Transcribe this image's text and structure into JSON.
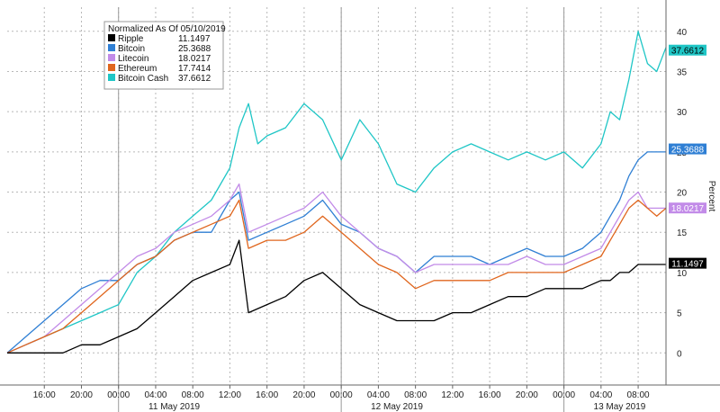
{
  "chart_data": {
    "type": "line",
    "ylabel": "Percent",
    "ylim": [
      -4,
      43
    ],
    "y_ticks": [
      "0",
      "5",
      "10",
      "15",
      "20",
      "25",
      "30",
      "35",
      "40"
    ],
    "y_tick_values": [
      0,
      5,
      10,
      15,
      20,
      25,
      30,
      35,
      40
    ],
    "x_hours_range": [
      0,
      71
    ],
    "x_tick_labels": [
      "16:00",
      "20:00",
      "00:00",
      "04:00",
      "08:00",
      "12:00",
      "16:00",
      "20:00",
      "00:00",
      "04:00",
      "08:00",
      "12:00",
      "16:00",
      "20:00",
      "00:00",
      "04:00",
      "08:00",
      "12:00"
    ],
    "x_tick_hours": [
      4,
      8,
      12,
      16,
      20,
      24,
      28,
      32,
      36,
      40,
      44,
      48,
      52,
      56,
      60,
      64,
      68,
      72
    ],
    "date_labels": [
      "11 May 2019",
      "12 May 2019",
      "13 May 2019"
    ],
    "date_label_hours": [
      18,
      42,
      66
    ],
    "day_boundary_hours": [
      12,
      36,
      60
    ],
    "grid": true,
    "legend": {
      "title": "Normalized As Of 05/10/2019",
      "position": "top-left"
    },
    "series": [
      {
        "name": "Bitcoin Cash",
        "last": "37.6612",
        "color": "#1fc6c6",
        "x": [
          0,
          2,
          4,
          6,
          8,
          10,
          12,
          14,
          16,
          18,
          20,
          22,
          24,
          25,
          26,
          27,
          28,
          30,
          32,
          34,
          36,
          38,
          40,
          42,
          44,
          46,
          48,
          50,
          52,
          54,
          56,
          58,
          60,
          62,
          64,
          65,
          66,
          67,
          68,
          69,
          70,
          71
        ],
        "y": [
          0,
          1,
          2,
          3,
          4,
          5,
          6,
          10,
          12,
          15,
          17,
          19,
          23,
          28,
          31,
          26,
          27,
          28,
          31,
          29,
          24,
          29,
          26,
          21,
          20,
          23,
          25,
          26,
          25,
          24,
          25,
          24,
          25,
          23,
          26,
          30,
          29,
          34,
          40,
          36,
          35,
          38
        ]
      },
      {
        "name": "Bitcoin",
        "last": "25.3688",
        "color": "#2f7fd4",
        "x": [
          0,
          2,
          4,
          6,
          8,
          10,
          12,
          14,
          16,
          18,
          20,
          22,
          24,
          25,
          26,
          28,
          30,
          32,
          34,
          36,
          38,
          40,
          42,
          44,
          46,
          48,
          50,
          52,
          54,
          56,
          58,
          60,
          62,
          64,
          65,
          66,
          67,
          68,
          69,
          70,
          71
        ],
        "y": [
          0,
          2,
          4,
          6,
          8,
          9,
          9,
          11,
          12,
          14,
          15,
          15,
          19,
          20,
          14,
          15,
          16,
          17,
          19,
          16,
          15,
          13,
          12,
          10,
          12,
          12,
          12,
          11,
          12,
          13,
          12,
          12,
          13,
          15,
          17,
          19,
          22,
          24,
          25,
          25,
          25
        ]
      },
      {
        "name": "Litecoin",
        "last": "18.0217",
        "color": "#c28be8",
        "x": [
          0,
          2,
          4,
          6,
          8,
          10,
          12,
          14,
          16,
          18,
          20,
          22,
          24,
          25,
          26,
          28,
          30,
          32,
          34,
          36,
          38,
          40,
          42,
          44,
          46,
          48,
          50,
          52,
          54,
          56,
          58,
          60,
          62,
          64,
          65,
          66,
          67,
          68,
          69,
          70,
          71
        ],
        "y": [
          0,
          1,
          2,
          4,
          6,
          8,
          10,
          12,
          13,
          15,
          16,
          17,
          19,
          21,
          15,
          16,
          17,
          18,
          20,
          17,
          15,
          13,
          12,
          10,
          11,
          11,
          11,
          11,
          11,
          12,
          11,
          11,
          12,
          13,
          15,
          17,
          19,
          20,
          18,
          18,
          18
        ]
      },
      {
        "name": "Ethereum",
        "last": "17.7414",
        "color": "#e0661e",
        "x": [
          0,
          2,
          4,
          6,
          8,
          10,
          12,
          14,
          16,
          18,
          20,
          22,
          24,
          25,
          26,
          28,
          30,
          32,
          34,
          36,
          38,
          40,
          42,
          44,
          46,
          48,
          50,
          52,
          54,
          56,
          58,
          60,
          62,
          64,
          65,
          66,
          67,
          68,
          69,
          70,
          71
        ],
        "y": [
          0,
          1,
          2,
          3,
          5,
          7,
          9,
          11,
          12,
          14,
          15,
          16,
          17,
          19,
          13,
          14,
          14,
          15,
          17,
          15,
          13,
          11,
          10,
          8,
          9,
          9,
          9,
          9,
          10,
          10,
          10,
          10,
          11,
          12,
          14,
          16,
          18,
          19,
          18,
          17,
          18
        ]
      },
      {
        "name": "Ripple",
        "last": "11.1497",
        "color": "#000000",
        "x": [
          0,
          2,
          4,
          6,
          8,
          10,
          12,
          14,
          16,
          18,
          20,
          22,
          24,
          25,
          26,
          28,
          30,
          32,
          34,
          36,
          38,
          40,
          42,
          44,
          46,
          48,
          50,
          52,
          54,
          56,
          58,
          60,
          62,
          64,
          65,
          66,
          67,
          68,
          69,
          70,
          71
        ],
        "y": [
          0,
          0,
          0,
          0,
          1,
          1,
          2,
          3,
          5,
          7,
          9,
          10,
          11,
          14,
          5,
          6,
          7,
          9,
          10,
          8,
          6,
          5,
          4,
          4,
          4,
          5,
          5,
          6,
          7,
          7,
          8,
          8,
          8,
          9,
          9,
          10,
          10,
          11,
          11,
          11,
          11
        ]
      }
    ]
  }
}
